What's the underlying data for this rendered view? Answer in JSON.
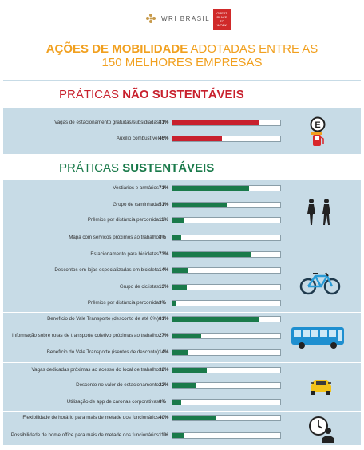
{
  "header": {
    "brand": "WRI BRASIL",
    "gptw_lines": [
      "GREAT",
      "PLACE",
      "TO",
      "WORK"
    ],
    "title_line1_bold": "AÇÕES DE MOBILIDADE",
    "title_line1_rest": " ADOTADAS ENTRE AS",
    "title_line2": "150 MELHORES EMPRESAS"
  },
  "colors": {
    "title": "#f1a01f",
    "unsustainable": "#c8202d",
    "sustainable": "#1a7a4a",
    "band": "#c7dbe6"
  },
  "sections": {
    "unsustainable": {
      "prefix": "PRÁTICAS ",
      "bold": "NÃO SUSTENTÁVEIS"
    },
    "sustainable": {
      "prefix": "PRÁTICAS ",
      "bold": "SUSTENTÁVEIS"
    }
  },
  "icons": [
    "parking-sign-icon",
    "fuel-pump-icon",
    "walking-people-icon",
    "bicycle-icon",
    "bus-icon",
    "car-icon",
    "clock-person-icon"
  ],
  "chart_data": {
    "type": "bar",
    "orientation": "horizontal",
    "xlim": [
      0,
      100
    ],
    "unit": "%",
    "groups": [
      {
        "section": "unsustainable",
        "icon": "parking-sign-icon",
        "rows": [
          {
            "label": "Vagas de estacionamento gratuitas/subsidiadas",
            "value": 81,
            "display": "81%"
          },
          {
            "label": "Auxílio combustível",
            "value": 46,
            "display": "46%"
          }
        ]
      },
      {
        "section": "sustainable",
        "icon": "walking-people-icon",
        "rows": [
          {
            "label": "Vestiários e armários",
            "value": 71,
            "display": "71%"
          },
          {
            "label": "Grupo de caminhada",
            "value": 51,
            "display": "51%"
          },
          {
            "label": "Prêmios por distância percorrida",
            "value": 11,
            "display": "11%"
          },
          {
            "label": "Mapa com serviços próximos ao trabalho",
            "value": 8,
            "display": "8%"
          }
        ]
      },
      {
        "section": "sustainable",
        "icon": "bicycle-icon",
        "rows": [
          {
            "label": "Estacionamento para bicicletas",
            "value": 73,
            "display": "73%"
          },
          {
            "label": "Descontos em lojas especializadas em bicicleta",
            "value": 14,
            "display": "14%"
          },
          {
            "label": "Grupo de ciclistas",
            "value": 13,
            "display": "13%"
          },
          {
            "label": "Prêmios por distância percorrida",
            "value": 3,
            "display": "3%"
          }
        ]
      },
      {
        "section": "sustainable",
        "icon": "bus-icon",
        "rows": [
          {
            "label": "Benefício do Vale Transporte (desconto de até 6%)",
            "value": 81,
            "display": "81%"
          },
          {
            "label": "Informação sobre rotas de transporte coletivo próximas ao trabalho",
            "value": 27,
            "display": "27%"
          },
          {
            "label": "Benefício do Vale Transporte (isentos de desconto)",
            "value": 14,
            "display": "14%"
          }
        ]
      },
      {
        "section": "sustainable",
        "icon": "car-icon",
        "rows": [
          {
            "label": "Vagas dedicadas próximas ao acesso do local de trabalho",
            "value": 32,
            "display": "32%"
          },
          {
            "label": "Desconto no valor do estacionamento",
            "value": 22,
            "display": "22%"
          },
          {
            "label": "Utilização de app de caronas corporativas",
            "value": 8,
            "display": "8%"
          }
        ]
      },
      {
        "section": "sustainable",
        "icon": "clock-person-icon",
        "rows": [
          {
            "label": "Flexibilidade de horário para mais de metade dos funcionários",
            "value": 40,
            "display": "40%"
          },
          {
            "label": "Possibilidade de home office para mais de metade dos funcionários",
            "value": 11,
            "display": "11%"
          }
        ]
      }
    ]
  }
}
